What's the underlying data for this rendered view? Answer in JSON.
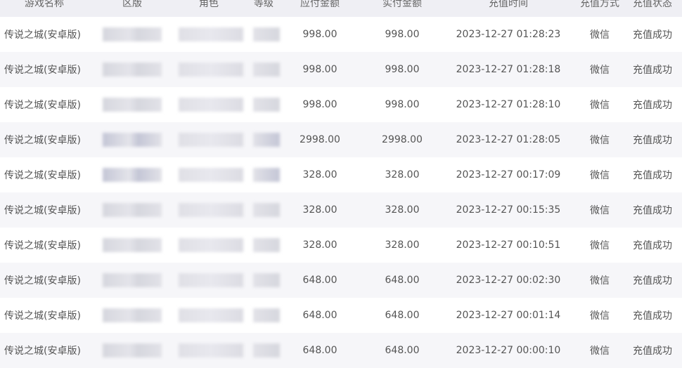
{
  "columns": [
    "游戏名称",
    "区版",
    "角色",
    "等级",
    "应付金额",
    "实付金额",
    "充值时间",
    "充值方式",
    "充值状态"
  ],
  "rows": [
    {
      "game": "传说之城(安卓版)",
      "payable": "998.00",
      "paid": "998.00",
      "time": "2023-12-27 01:28:23",
      "method": "微信",
      "status": "充值成功"
    },
    {
      "game": "传说之城(安卓版)",
      "payable": "998.00",
      "paid": "998.00",
      "time": "2023-12-27 01:28:18",
      "method": "微信",
      "status": "充值成功"
    },
    {
      "game": "传说之城(安卓版)",
      "payable": "998.00",
      "paid": "998.00",
      "time": "2023-12-27 01:28:10",
      "method": "微信",
      "status": "充值成功"
    },
    {
      "game": "传说之城(安卓版)",
      "payable": "2998.00",
      "paid": "2998.00",
      "time": "2023-12-27 01:28:05",
      "method": "微信",
      "status": "充值成功"
    },
    {
      "game": "传说之城(安卓版)",
      "payable": "328.00",
      "paid": "328.00",
      "time": "2023-12-27 00:17:09",
      "method": "微信",
      "status": "充值成功"
    },
    {
      "game": "传说之城(安卓版)",
      "payable": "328.00",
      "paid": "328.00",
      "time": "2023-12-27 00:15:35",
      "method": "微信",
      "status": "充值成功"
    },
    {
      "game": "传说之城(安卓版)",
      "payable": "328.00",
      "paid": "328.00",
      "time": "2023-12-27 00:10:51",
      "method": "微信",
      "status": "充值成功"
    },
    {
      "game": "传说之城(安卓版)",
      "payable": "648.00",
      "paid": "648.00",
      "time": "2023-12-27 00:02:30",
      "method": "微信",
      "status": "充值成功"
    },
    {
      "game": "传说之城(安卓版)",
      "payable": "648.00",
      "paid": "648.00",
      "time": "2023-12-27 00:01:14",
      "method": "微信",
      "status": "充值成功"
    },
    {
      "game": "传说之城(安卓版)",
      "payable": "648.00",
      "paid": "648.00",
      "time": "2023-12-27 00:00:10",
      "method": "微信",
      "status": "充值成功"
    }
  ]
}
